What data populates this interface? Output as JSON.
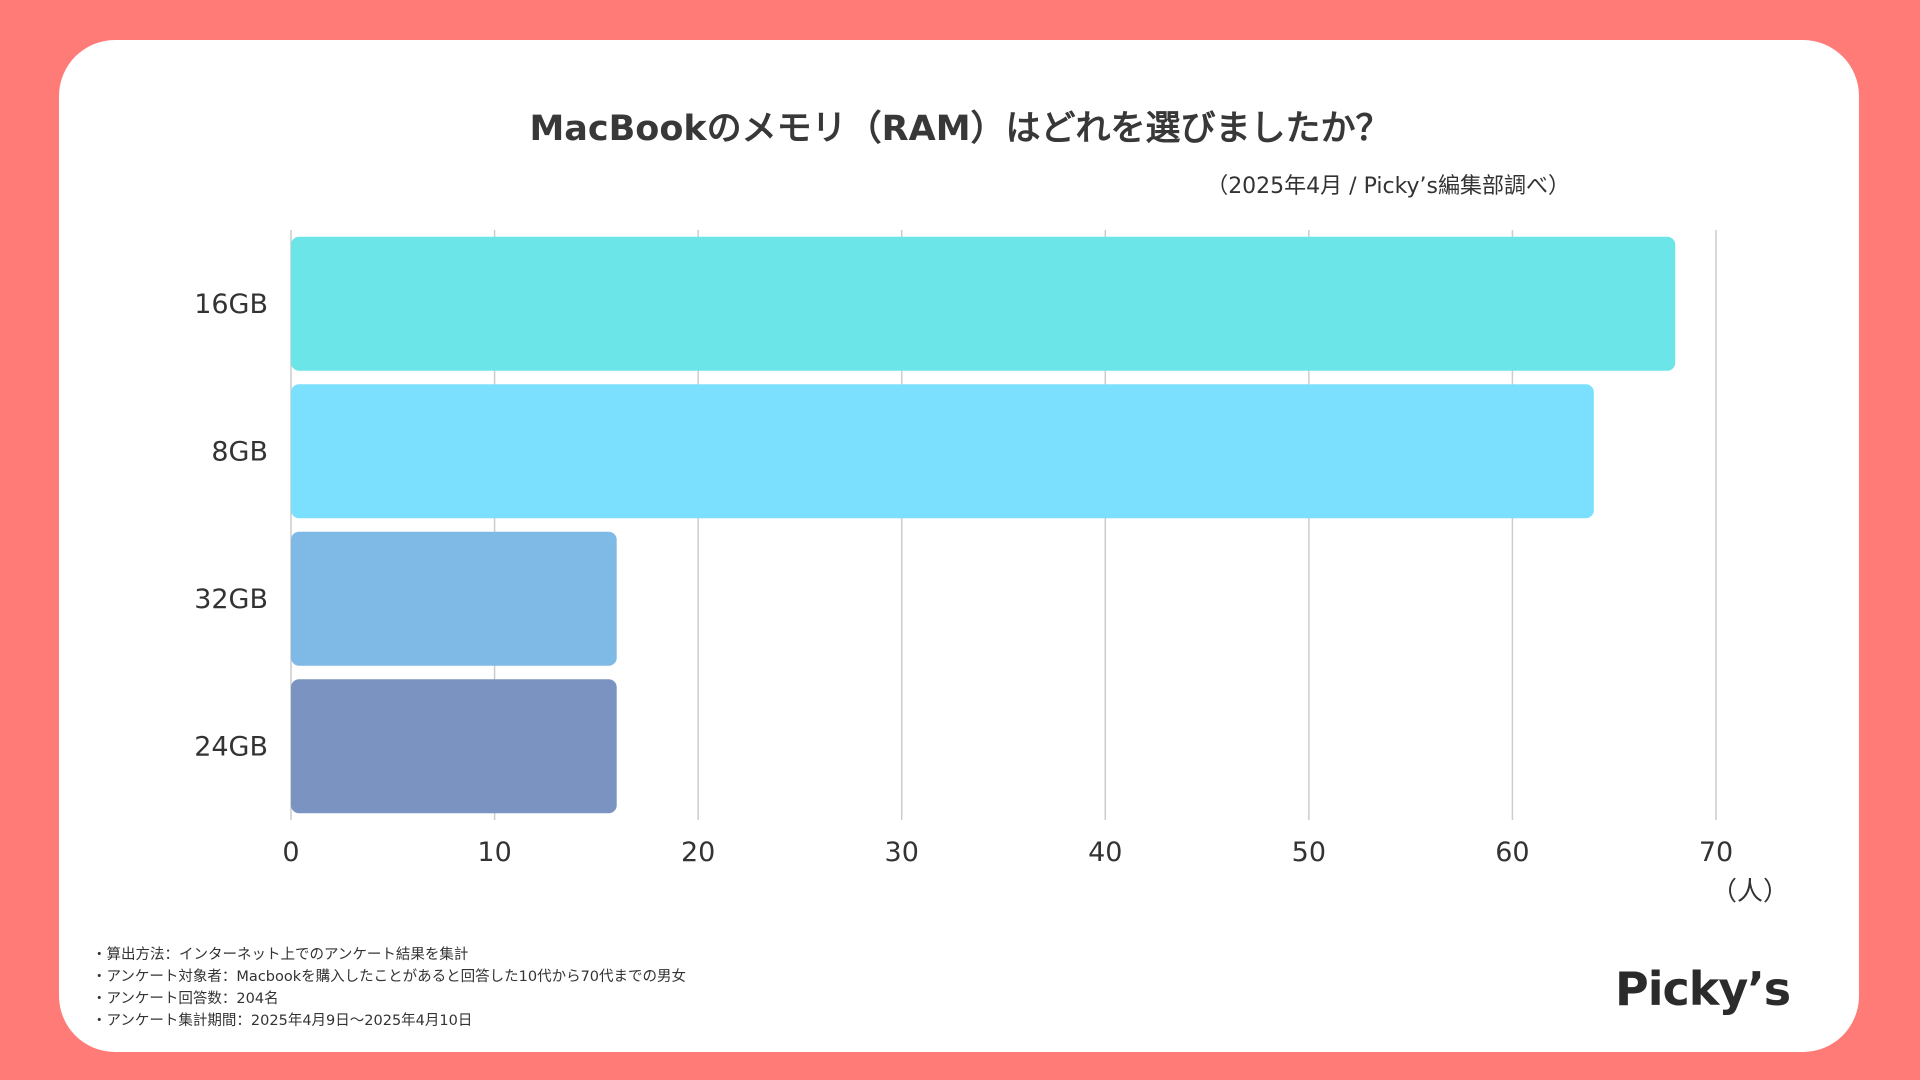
{
  "colors": {
    "background": "#ff7b77",
    "card": "#ffffff",
    "grid": "#cccccc",
    "text": "#333333"
  },
  "chart_data": {
    "type": "bar",
    "orientation": "horizontal",
    "title": "MacBookのメモリ（RAM）はどれを選びましたか？",
    "subtitle": "（2025年4月 / Picky’s編集部調べ）",
    "categories": [
      "16GB",
      "8GB",
      "32GB",
      "24GB"
    ],
    "values": [
      68,
      64,
      16,
      16
    ],
    "bar_colors": [
      "#6ce5e8",
      "#7be0fd",
      "#7fbae6",
      "#7b93c1"
    ],
    "xlim": [
      0,
      70
    ],
    "xticks": [
      "0",
      "10",
      "20",
      "30",
      "40",
      "50",
      "60",
      "70"
    ],
    "xunit": "（人）",
    "grid": true,
    "legend": "none"
  },
  "notes": [
    "・算出方法：インターネット上でのアンケート結果を集計",
    "・アンケート対象者：Macbookを購入したことがあると回答した10代から70代までの男女",
    "・アンケート回答数：204名",
    "・アンケート集計期間：2025年4月9日〜2025年4月10日"
  ],
  "logo": "Picky’s"
}
